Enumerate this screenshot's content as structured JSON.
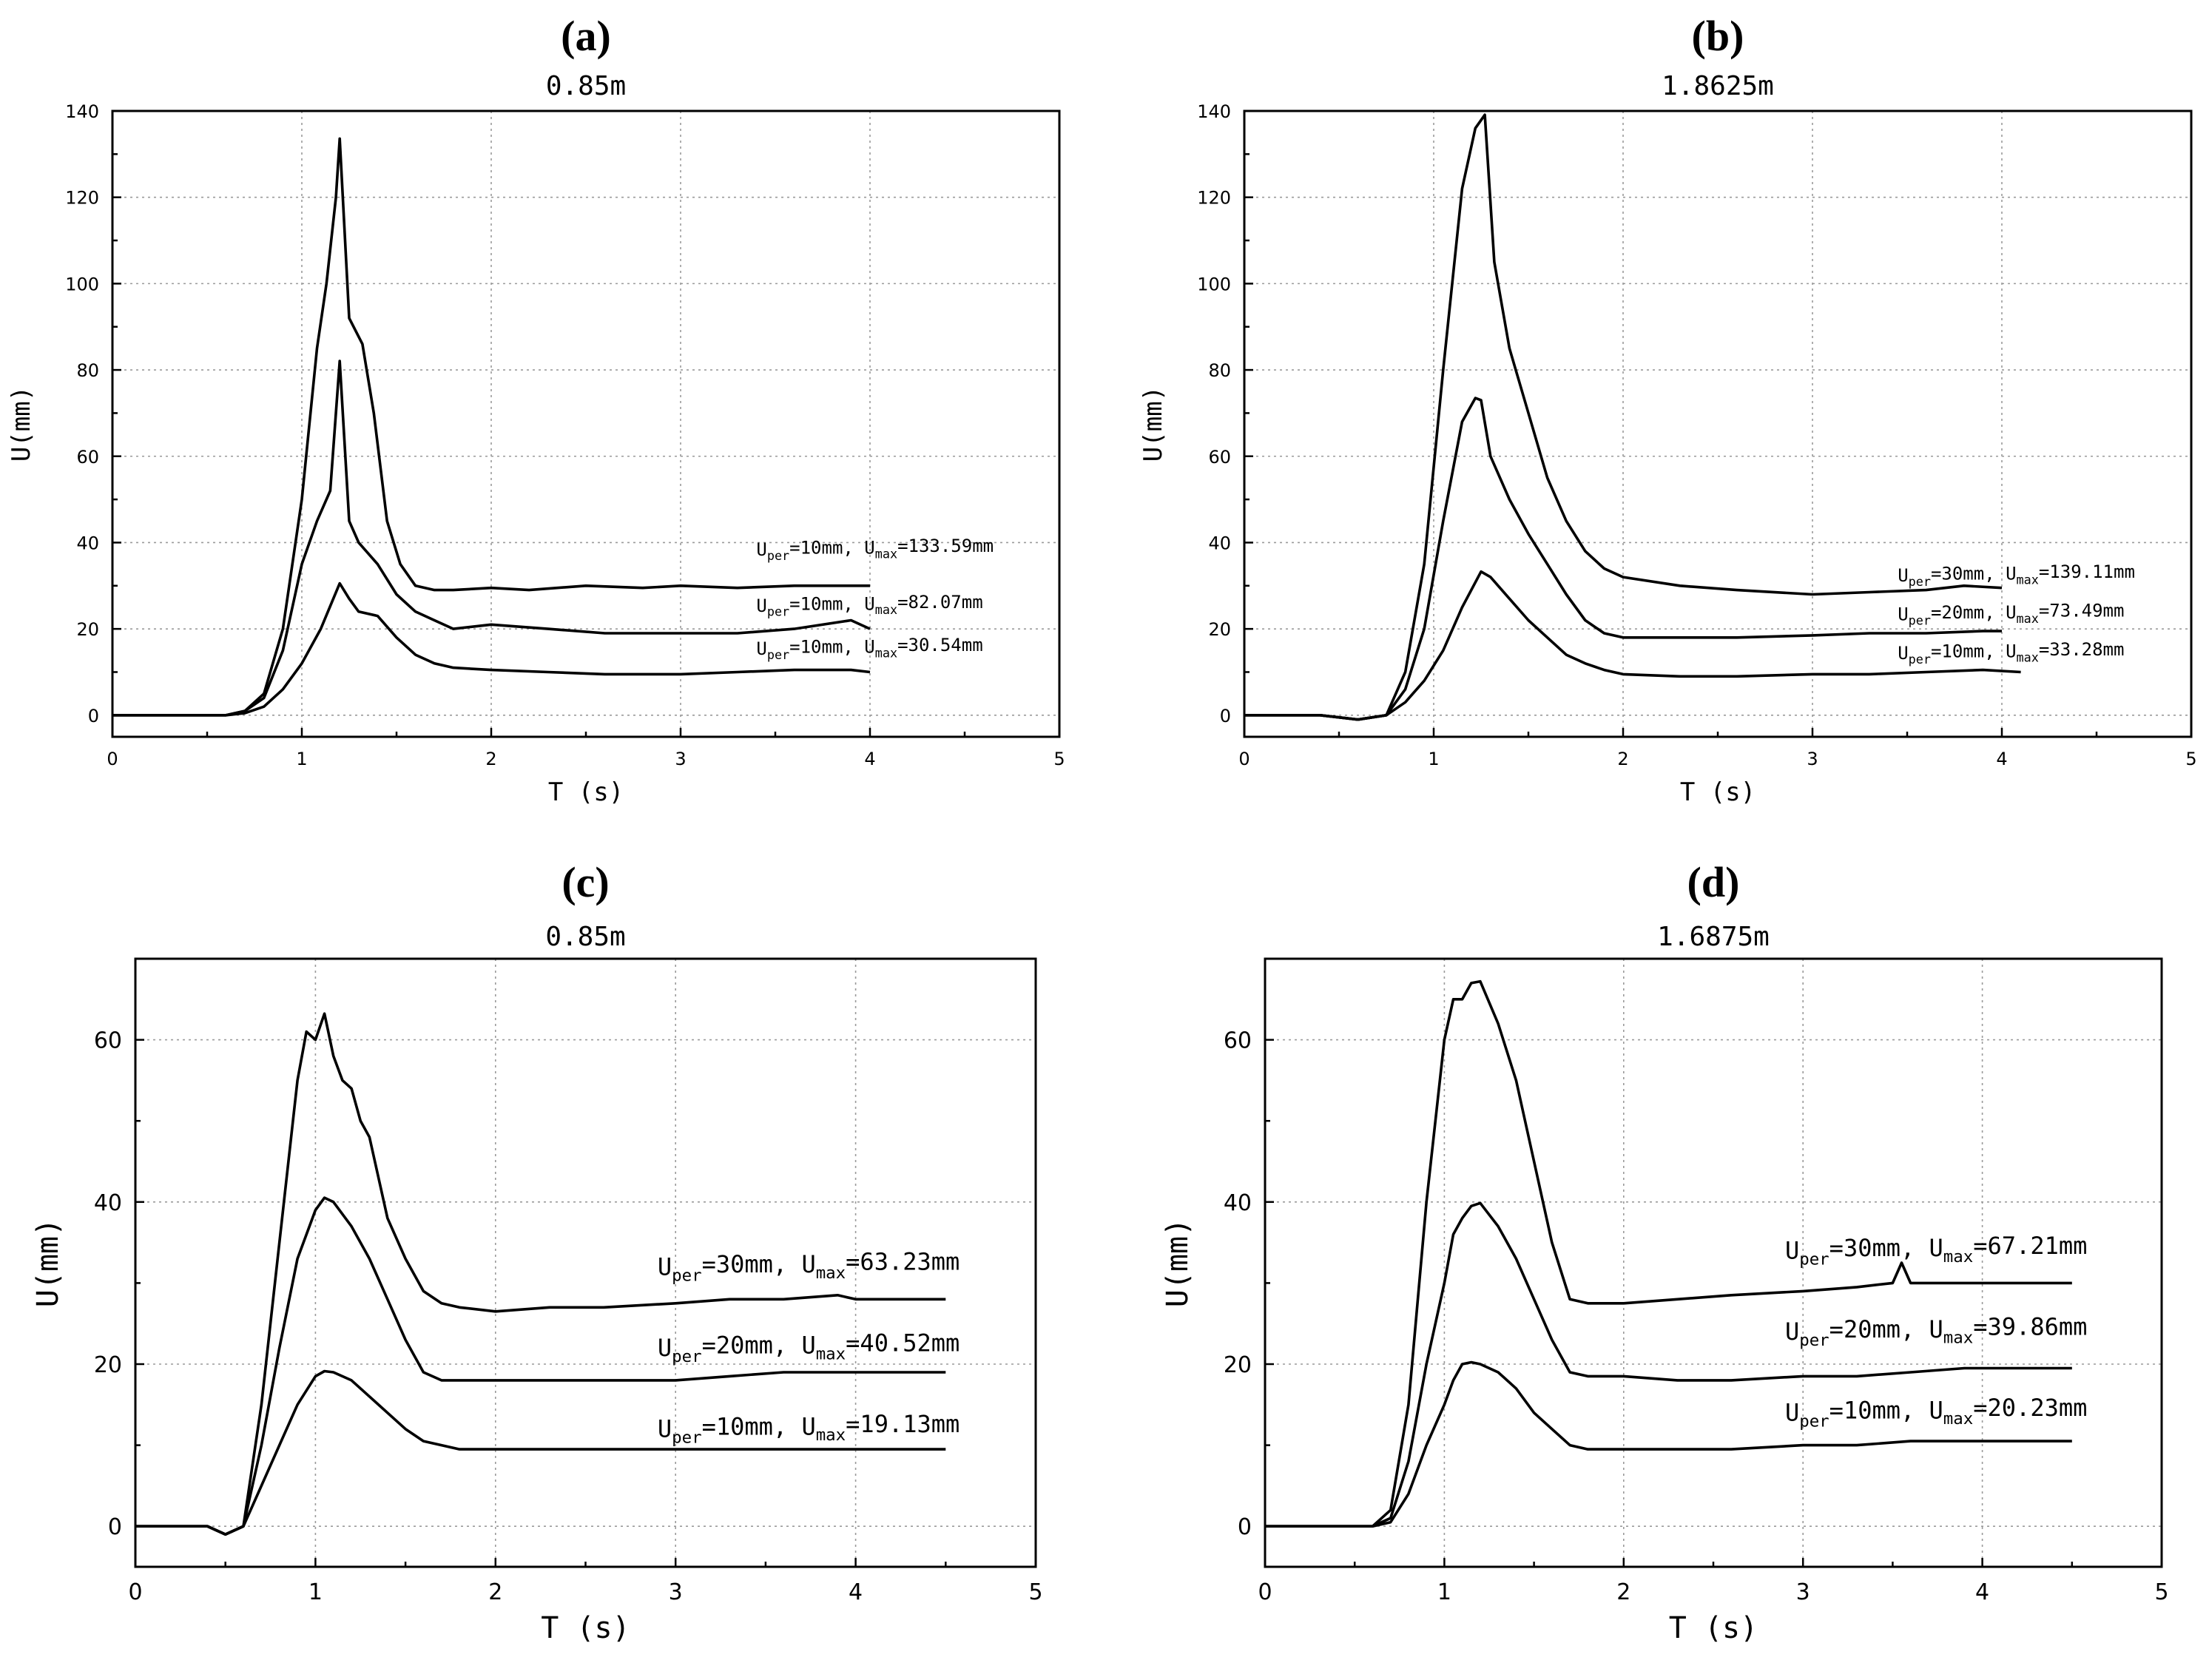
{
  "chart_data": [
    {
      "type": "line",
      "panel": "(a)",
      "title": "0.85m",
      "xlabel": "T (s)",
      "ylabel": "U(mm)",
      "xlim": [
        0,
        5
      ],
      "ylim": [
        -5,
        140
      ],
      "xticks": [
        0,
        1,
        2,
        3,
        4,
        5
      ],
      "yticks": [
        0,
        20,
        40,
        60,
        80,
        100,
        120,
        140
      ],
      "grid": true,
      "series": [
        {
          "name": "Uper=10mm, Umax=133.59mm",
          "label": {
            "main1": "U",
            "sub1": "per",
            "main2": "=10mm, U",
            "sub2": "max",
            "main3": "=133.59mm"
          },
          "label_anchor": [
            3.4,
            37
          ],
          "x": [
            0,
            0.3,
            0.6,
            0.7,
            0.8,
            0.9,
            1.0,
            1.08,
            1.13,
            1.18,
            1.2,
            1.25,
            1.32,
            1.38,
            1.45,
            1.52,
            1.6,
            1.7,
            1.8,
            2.0,
            2.2,
            2.5,
            2.8,
            3.0,
            3.3,
            3.6,
            3.8,
            4.0
          ],
          "values": [
            0,
            0,
            0,
            1,
            5,
            20,
            50,
            85,
            100,
            120,
            133.59,
            92,
            86,
            70,
            45,
            35,
            30,
            29,
            29,
            29.5,
            29,
            30,
            29.5,
            30,
            29.5,
            30,
            30,
            30
          ]
        },
        {
          "name": "Uper=10mm, Umax=82.07mm",
          "label": {
            "main1": "U",
            "sub1": "per",
            "main2": "=10mm, U",
            "sub2": "max",
            "main3": "=82.07mm"
          },
          "label_anchor": [
            3.4,
            24
          ],
          "x": [
            0,
            0.3,
            0.6,
            0.7,
            0.8,
            0.9,
            1.0,
            1.08,
            1.15,
            1.2,
            1.25,
            1.3,
            1.4,
            1.5,
            1.6,
            1.7,
            1.8,
            2.0,
            2.3,
            2.6,
            3.0,
            3.3,
            3.6,
            3.9,
            4.0
          ],
          "values": [
            0,
            0,
            0,
            1,
            4,
            15,
            35,
            45,
            52,
            82.07,
            45,
            40,
            35,
            28,
            24,
            22,
            20,
            21,
            20,
            19,
            19,
            19,
            20,
            22,
            20
          ]
        },
        {
          "name": "Uper=10mm, Umax=30.54mm",
          "label": {
            "main1": "U",
            "sub1": "per",
            "main2": "=10mm, U",
            "sub2": "max",
            "main3": "=30.54mm"
          },
          "label_anchor": [
            3.4,
            14
          ],
          "x": [
            0,
            0.3,
            0.6,
            0.7,
            0.8,
            0.9,
            1.0,
            1.1,
            1.2,
            1.25,
            1.3,
            1.4,
            1.5,
            1.6,
            1.7,
            1.8,
            2.0,
            2.3,
            2.6,
            3.0,
            3.3,
            3.6,
            3.9,
            4.0
          ],
          "values": [
            0,
            0,
            0,
            0.5,
            2,
            6,
            12,
            20,
            30.54,
            27,
            24,
            23,
            18,
            14,
            12,
            11,
            10.5,
            10,
            9.5,
            9.5,
            10,
            10.5,
            10.5,
            10
          ]
        }
      ]
    },
    {
      "type": "line",
      "panel": "(b)",
      "title": "1.8625m",
      "xlabel": "T (s)",
      "ylabel": "U(mm)",
      "xlim": [
        0,
        5
      ],
      "ylim": [
        -5,
        140
      ],
      "xticks": [
        0,
        1,
        2,
        3,
        4,
        5
      ],
      "yticks": [
        0,
        20,
        40,
        60,
        80,
        100,
        120,
        140
      ],
      "grid": true,
      "series": [
        {
          "name": "Uper=30mm, Umax=139.11mm",
          "label": {
            "main1": "U",
            "sub1": "per",
            "main2": "=30mm, U",
            "sub2": "max",
            "main3": "=139.11mm"
          },
          "label_anchor": [
            3.45,
            31
          ],
          "x": [
            0,
            0.4,
            0.6,
            0.75,
            0.85,
            0.95,
            1.05,
            1.15,
            1.22,
            1.27,
            1.32,
            1.4,
            1.5,
            1.6,
            1.7,
            1.8,
            1.9,
            2.0,
            2.3,
            2.6,
            3.0,
            3.3,
            3.6,
            3.8,
            4.0
          ],
          "values": [
            0,
            0,
            -1,
            0,
            10,
            35,
            80,
            122,
            136,
            139.11,
            105,
            85,
            70,
            55,
            45,
            38,
            34,
            32,
            30,
            29,
            28,
            28.5,
            29,
            30,
            29.5
          ]
        },
        {
          "name": "Uper=20mm, Umax=73.49mm",
          "label": {
            "main1": "U",
            "sub1": "per",
            "main2": "=20mm, U",
            "sub2": "max",
            "main3": "=73.49mm"
          },
          "label_anchor": [
            3.45,
            22
          ],
          "x": [
            0,
            0.4,
            0.6,
            0.75,
            0.85,
            0.95,
            1.05,
            1.15,
            1.22,
            1.25,
            1.3,
            1.4,
            1.5,
            1.6,
            1.7,
            1.8,
            1.9,
            2.0,
            2.3,
            2.6,
            3.0,
            3.3,
            3.6,
            3.9,
            4.0
          ],
          "values": [
            0,
            0,
            -1,
            0,
            6,
            20,
            45,
            68,
            73.49,
            73,
            60,
            50,
            42,
            35,
            28,
            22,
            19,
            18,
            18,
            18,
            18.5,
            19,
            19,
            19.5,
            19.5
          ]
        },
        {
          "name": "Uper=10mm, Umax=33.28mm",
          "label": {
            "main1": "U",
            "sub1": "per",
            "main2": "=10mm, U",
            "sub2": "max",
            "main3": "=33.28mm"
          },
          "label_anchor": [
            3.45,
            13
          ],
          "x": [
            0,
            0.4,
            0.6,
            0.75,
            0.85,
            0.95,
            1.05,
            1.15,
            1.25,
            1.3,
            1.4,
            1.5,
            1.6,
            1.7,
            1.8,
            1.9,
            2.0,
            2.3,
            2.6,
            3.0,
            3.3,
            3.6,
            3.9,
            4.1
          ],
          "values": [
            0,
            0,
            -1,
            0,
            3,
            8,
            15,
            25,
            33.28,
            32,
            27,
            22,
            18,
            14,
            12,
            10.5,
            9.5,
            9,
            9,
            9.5,
            9.5,
            10,
            10.5,
            10
          ]
        }
      ]
    },
    {
      "type": "line",
      "panel": "(c)",
      "title": "0.85m",
      "xlabel": "T (s)",
      "ylabel": "U(mm)",
      "xlim": [
        0,
        5
      ],
      "ylim": [
        -5,
        70
      ],
      "xticks": [
        0,
        1,
        2,
        3,
        4,
        5
      ],
      "yticks": [
        0,
        20,
        40,
        60
      ],
      "grid": true,
      "series": [
        {
          "name": "Uper=30mm, Umax=63.23mm",
          "label": {
            "main1": "U",
            "sub1": "per",
            "main2": "=30mm, U",
            "sub2": "max",
            "main3": "=63.23mm"
          },
          "label_anchor": [
            2.9,
            31
          ],
          "x": [
            0,
            0.4,
            0.5,
            0.6,
            0.7,
            0.8,
            0.9,
            0.95,
            1.0,
            1.05,
            1.1,
            1.15,
            1.2,
            1.25,
            1.3,
            1.4,
            1.5,
            1.6,
            1.7,
            1.8,
            2.0,
            2.3,
            2.6,
            3.0,
            3.3,
            3.6,
            3.9,
            4.0,
            4.5
          ],
          "values": [
            0,
            0,
            -1,
            0,
            15,
            35,
            55,
            61,
            60,
            63.23,
            58,
            55,
            54,
            50,
            48,
            38,
            33,
            29,
            27.5,
            27,
            26.5,
            27,
            27,
            27.5,
            28,
            28,
            28.5,
            28,
            28
          ]
        },
        {
          "name": "Uper=20mm, Umax=40.52mm",
          "label": {
            "main1": "U",
            "sub1": "per",
            "main2": "=20mm, U",
            "sub2": "max",
            "main3": "=40.52mm"
          },
          "label_anchor": [
            2.9,
            21
          ],
          "x": [
            0,
            0.4,
            0.5,
            0.6,
            0.7,
            0.8,
            0.9,
            1.0,
            1.05,
            1.1,
            1.2,
            1.3,
            1.4,
            1.5,
            1.6,
            1.7,
            1.8,
            2.0,
            2.3,
            2.6,
            3.0,
            3.3,
            3.6,
            3.9,
            4.0,
            4.5
          ],
          "values": [
            0,
            0,
            -1,
            0,
            10,
            22,
            33,
            39,
            40.52,
            40,
            37,
            33,
            28,
            23,
            19,
            18,
            18,
            18,
            18,
            18,
            18,
            18.5,
            19,
            19,
            19,
            19
          ]
        },
        {
          "name": "Uper=10mm, Umax=19.13mm",
          "label": {
            "main1": "U",
            "sub1": "per",
            "main2": "=10mm, U",
            "sub2": "max",
            "main3": "=19.13mm"
          },
          "label_anchor": [
            2.9,
            11
          ],
          "x": [
            0,
            0.4,
            0.5,
            0.6,
            0.7,
            0.8,
            0.9,
            1.0,
            1.05,
            1.1,
            1.2,
            1.3,
            1.4,
            1.5,
            1.6,
            1.7,
            1.8,
            2.0,
            2.3,
            2.6,
            3.0,
            3.3,
            3.6,
            3.9,
            4.0,
            4.5
          ],
          "values": [
            0,
            0,
            -1,
            0,
            5,
            10,
            15,
            18.5,
            19.13,
            19,
            18,
            16,
            14,
            12,
            10.5,
            10,
            9.5,
            9.5,
            9.5,
            9.5,
            9.5,
            9.5,
            9.5,
            9.5,
            9.5,
            9.5
          ]
        }
      ]
    },
    {
      "type": "line",
      "panel": "(d)",
      "title": "1.6875m",
      "xlabel": "T (s)",
      "ylabel": "U(mm)",
      "xlim": [
        0,
        5
      ],
      "ylim": [
        -5,
        70
      ],
      "xticks": [
        0,
        1,
        2,
        3,
        4,
        5
      ],
      "yticks": [
        0,
        20,
        40,
        60
      ],
      "grid": true,
      "series": [
        {
          "name": "Uper=30mm, Umax=67.21mm",
          "label": {
            "main1": "U",
            "sub1": "per",
            "main2": "=30mm, U",
            "sub2": "max",
            "main3": "=67.21mm"
          },
          "label_anchor": [
            2.9,
            33
          ],
          "x": [
            0,
            0.3,
            0.6,
            0.7,
            0.8,
            0.9,
            1.0,
            1.05,
            1.1,
            1.15,
            1.2,
            1.3,
            1.4,
            1.5,
            1.6,
            1.7,
            1.8,
            2.0,
            2.3,
            2.6,
            3.0,
            3.3,
            3.5,
            3.55,
            3.6,
            3.9,
            4.2,
            4.5
          ],
          "values": [
            0,
            0,
            0,
            2,
            15,
            40,
            60,
            65,
            65,
            67,
            67.21,
            62,
            55,
            45,
            35,
            28,
            27.5,
            27.5,
            28,
            28.5,
            29,
            29.5,
            30,
            32.5,
            30,
            30,
            30,
            30
          ]
        },
        {
          "name": "Uper=20mm, Umax=39.86mm",
          "label": {
            "main1": "U",
            "sub1": "per",
            "main2": "=20mm, U",
            "sub2": "max",
            "main3": "=39.86mm"
          },
          "label_anchor": [
            2.9,
            23
          ],
          "x": [
            0,
            0.3,
            0.6,
            0.7,
            0.8,
            0.9,
            1.0,
            1.05,
            1.1,
            1.15,
            1.2,
            1.3,
            1.4,
            1.5,
            1.6,
            1.7,
            1.8,
            2.0,
            2.3,
            2.6,
            3.0,
            3.3,
            3.6,
            3.9,
            4.2,
            4.5
          ],
          "values": [
            0,
            0,
            0,
            1,
            8,
            20,
            30,
            36,
            38,
            39.5,
            39.86,
            37,
            33,
            28,
            23,
            19,
            18.5,
            18.5,
            18,
            18,
            18.5,
            18.5,
            19,
            19.5,
            19.5,
            19.5
          ]
        },
        {
          "name": "Uper=10mm, Umax=20.23mm",
          "label": {
            "main1": "U",
            "sub1": "per",
            "main2": "=10mm, U",
            "sub2": "max",
            "main3": "=20.23mm"
          },
          "label_anchor": [
            2.9,
            13
          ],
          "x": [
            0,
            0.3,
            0.6,
            0.7,
            0.8,
            0.9,
            1.0,
            1.05,
            1.1,
            1.15,
            1.2,
            1.3,
            1.4,
            1.5,
            1.6,
            1.7,
            1.8,
            2.0,
            2.3,
            2.6,
            3.0,
            3.3,
            3.6,
            3.9,
            4.2,
            4.5
          ],
          "values": [
            0,
            0,
            0,
            0.5,
            4,
            10,
            15,
            18,
            20,
            20.23,
            20,
            19,
            17,
            14,
            12,
            10,
            9.5,
            9.5,
            9.5,
            9.5,
            10,
            10,
            10.5,
            10.5,
            10.5,
            10.5
          ]
        }
      ]
    }
  ]
}
